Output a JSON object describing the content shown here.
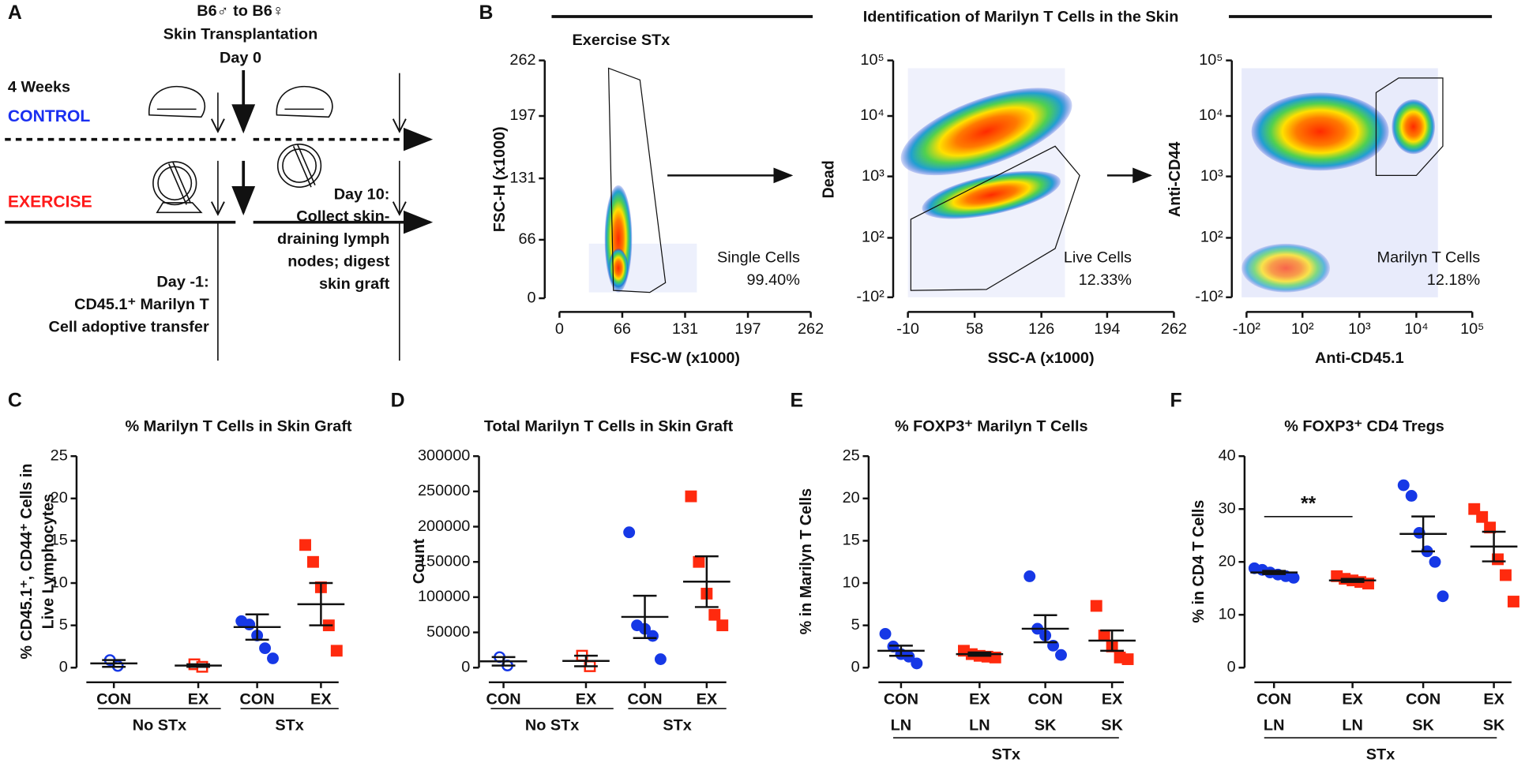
{
  "panel_a": {
    "label": "A",
    "header": [
      "B6♂ to B6♀",
      "Skin Transplantation",
      "Day 0"
    ],
    "weeks": "4 Weeks",
    "control": "CONTROL",
    "exercise": "EXERCISE",
    "day_minus1": [
      "Day -1:",
      "CD45.1⁺ Marilyn T",
      "Cell adoptive transfer"
    ],
    "day10": [
      "Day 10:",
      "Collect skin-",
      "draining lymph",
      "nodes; digest",
      "skin graft"
    ]
  },
  "panel_b": {
    "label": "B",
    "title": "Identification of Marilyn T Cells in the Skin",
    "subtitle": "Exercise STx",
    "plots": [
      {
        "ylabel": "FSC-H (x1000)",
        "xlabel": "FSC-W (x1000)",
        "yticks": [
          "0",
          "66",
          "131",
          "197",
          "262"
        ],
        "xticks": [
          "0",
          "66",
          "131",
          "197",
          "262"
        ],
        "gate": "Single Cells",
        "percent": "99.40%"
      },
      {
        "ylabel": "Dead",
        "xlabel": "SSC-A (x1000)",
        "yticks": [
          "-10²",
          "10²",
          "10³",
          "10⁴",
          "10⁵"
        ],
        "xticks": [
          "-10",
          "58",
          "126",
          "194",
          "262"
        ],
        "gate": "Live Cells",
        "percent": "12.33%"
      },
      {
        "ylabel": "Anti-CD44",
        "xlabel": "Anti-CD45.1",
        "yticks": [
          "-10²",
          "10²",
          "10³",
          "10⁴",
          "10⁵"
        ],
        "xticks": [
          "-10²",
          "10²",
          "10³",
          "10⁴",
          "10⁵"
        ],
        "gate": "Marilyn T Cells",
        "percent": "12.18%"
      }
    ]
  },
  "chart_data": [
    {
      "type": "dotplot",
      "label": "C",
      "title": "% Marilyn T Cells in Skin Graft",
      "ylabel": [
        "% CD45.1⁺, CD44⁺ Cells in",
        "Live Lymphocytes"
      ],
      "ylim": [
        0,
        25
      ],
      "yticks": [
        0,
        5,
        10,
        15,
        20,
        25
      ],
      "categories": [
        "CON",
        "EX",
        "CON",
        "EX"
      ],
      "groups": [
        "No STx",
        "STx"
      ],
      "data": [
        {
          "color": "#1638e6",
          "marker": "circle",
          "filled": false,
          "points": [
            0.9,
            0.2
          ],
          "mean": 0.5,
          "sem": 0.4
        },
        {
          "color": "#ff2a0e",
          "marker": "square",
          "filled": false,
          "points": [
            0.4,
            0.1
          ],
          "mean": 0.25,
          "sem": 0.15
        },
        {
          "color": "#1638e6",
          "marker": "circle",
          "filled": true,
          "points": [
            5.5,
            5.1,
            3.8,
            2.3,
            1.1
          ],
          "mean": 4.8,
          "sem": 1.5
        },
        {
          "color": "#ff2a0e",
          "marker": "square",
          "filled": true,
          "points": [
            14.5,
            12.5,
            9.5,
            5.0,
            2.0
          ],
          "mean": 7.5,
          "sem": 2.5
        }
      ]
    },
    {
      "type": "dotplot",
      "label": "D",
      "title": "Total Marilyn T Cells in Skin Graft",
      "ylabel": [
        "Count"
      ],
      "ylim": [
        0,
        300000
      ],
      "yticks": [
        0,
        50000,
        100000,
        150000,
        200000,
        250000,
        300000
      ],
      "categories": [
        "CON",
        "EX",
        "CON",
        "EX"
      ],
      "groups": [
        "No STx",
        "STx"
      ],
      "data": [
        {
          "color": "#1638e6",
          "marker": "circle",
          "filled": false,
          "points": [
            15000,
            3000
          ],
          "mean": 9000,
          "sem": 6000
        },
        {
          "color": "#ff2a0e",
          "marker": "square",
          "filled": false,
          "points": [
            17000,
            2000
          ],
          "mean": 9500,
          "sem": 7500
        },
        {
          "color": "#1638e6",
          "marker": "circle",
          "filled": true,
          "points": [
            192000,
            60000,
            55000,
            45000,
            12000
          ],
          "mean": 72000,
          "sem": 30000
        },
        {
          "color": "#ff2a0e",
          "marker": "square",
          "filled": true,
          "points": [
            243000,
            150000,
            105000,
            75000,
            60000
          ],
          "mean": 122000,
          "sem": 36000
        }
      ]
    },
    {
      "type": "dotplot",
      "label": "E",
      "title": "% FOXP3⁺ Marilyn T Cells",
      "ylabel": [
        "% in Marilyn T Cells"
      ],
      "ylim": [
        0,
        25
      ],
      "yticks": [
        0,
        5,
        10,
        15,
        20,
        25
      ],
      "categories": [
        "CON",
        "EX",
        "CON",
        "EX"
      ],
      "categories2": [
        "LN",
        "LN",
        "SK",
        "SK"
      ],
      "groups": [
        "STx"
      ],
      "data": [
        {
          "color": "#1638e6",
          "marker": "circle",
          "filled": true,
          "points": [
            4.0,
            2.5,
            1.6,
            1.3,
            0.5
          ],
          "mean": 2.0,
          "sem": 0.6
        },
        {
          "color": "#ff2a0e",
          "marker": "square",
          "filled": true,
          "points": [
            2.0,
            1.6,
            1.4,
            1.3,
            1.2
          ],
          "mean": 1.6,
          "sem": 0.2
        },
        {
          "color": "#1638e6",
          "marker": "circle",
          "filled": true,
          "points": [
            10.8,
            4.6,
            3.8,
            2.6,
            1.5
          ],
          "mean": 4.6,
          "sem": 1.6
        },
        {
          "color": "#ff2a0e",
          "marker": "square",
          "filled": true,
          "points": [
            7.3,
            3.8,
            2.5,
            1.2,
            1.0
          ],
          "mean": 3.2,
          "sem": 1.2
        }
      ]
    },
    {
      "type": "dotplot",
      "label": "F",
      "title": "% FOXP3⁺ CD4 Tregs",
      "ylabel": [
        "% in CD4 T Cells"
      ],
      "ylim": [
        0,
        40
      ],
      "yticks": [
        0,
        10,
        20,
        30,
        40
      ],
      "categories": [
        "CON",
        "EX",
        "CON",
        "EX"
      ],
      "categories2": [
        "LN",
        "LN",
        "SK",
        "SK"
      ],
      "groups": [
        "STx"
      ],
      "annotation": "**",
      "data": [
        {
          "color": "#1638e6",
          "marker": "circle",
          "filled": true,
          "points": [
            18.8,
            18.5,
            18.0,
            17.6,
            17.3,
            17.0
          ],
          "mean": 18.0,
          "sem": 0.3
        },
        {
          "color": "#ff2a0e",
          "marker": "square",
          "filled": true,
          "points": [
            17.3,
            16.8,
            16.5,
            16.2,
            15.9
          ],
          "mean": 16.5,
          "sem": 0.3
        },
        {
          "color": "#1638e6",
          "marker": "circle",
          "filled": true,
          "points": [
            34.5,
            32.5,
            25.5,
            22.0,
            20.0,
            13.5
          ],
          "mean": 25.3,
          "sem": 3.3
        },
        {
          "color": "#ff2a0e",
          "marker": "square",
          "filled": true,
          "points": [
            30.0,
            28.5,
            26.5,
            20.5,
            17.5,
            12.5
          ],
          "mean": 22.9,
          "sem": 2.8
        }
      ]
    }
  ]
}
